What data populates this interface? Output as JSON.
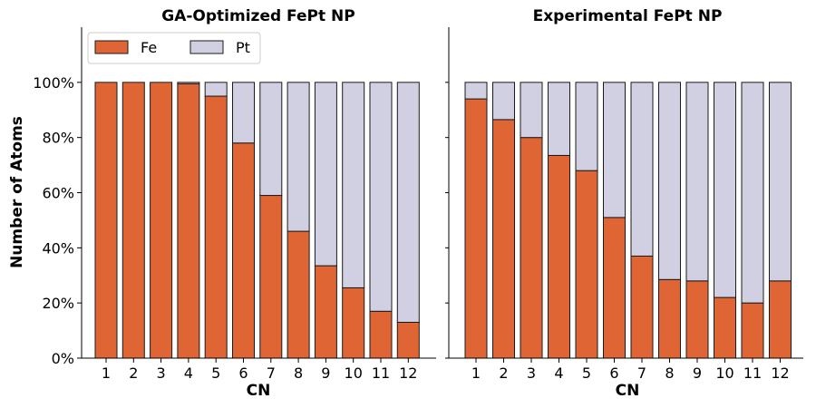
{
  "colors": {
    "Fe": "#e06535",
    "Pt": "#d0d0e2",
    "edge": "#1a1a1a"
  },
  "chart_data": [
    {
      "type": "bar",
      "stacked": true,
      "title": "GA-Optimized FePt NP",
      "xlabel": "CN",
      "ylabel": "Number of Atoms",
      "categories": [
        "1",
        "2",
        "3",
        "4",
        "5",
        "6",
        "7",
        "8",
        "9",
        "10",
        "11",
        "12"
      ],
      "ylim": [
        0,
        120
      ],
      "yticks": [
        "0%",
        "20%",
        "40%",
        "60%",
        "80%",
        "100%"
      ],
      "legend": {
        "placement": "top-left",
        "entries": [
          "Fe",
          "Pt"
        ]
      },
      "series": [
        {
          "name": "Fe",
          "values": [
            100,
            100,
            100,
            99.5,
            95,
            78,
            59,
            46,
            33.5,
            25.5,
            17,
            13
          ]
        },
        {
          "name": "Pt",
          "values": [
            0,
            0,
            0,
            0.5,
            5,
            22,
            41,
            54,
            66.5,
            74.5,
            83,
            87
          ]
        }
      ]
    },
    {
      "type": "bar",
      "stacked": true,
      "title": "Experimental FePt NP",
      "xlabel": "CN",
      "ylabel": "",
      "categories": [
        "1",
        "2",
        "3",
        "4",
        "5",
        "6",
        "7",
        "8",
        "9",
        "10",
        "11",
        "12"
      ],
      "ylim": [
        0,
        120
      ],
      "series": [
        {
          "name": "Fe",
          "values": [
            94,
            86.5,
            80,
            73.5,
            68,
            51,
            37,
            28.5,
            28,
            22,
            20,
            28
          ]
        },
        {
          "name": "Pt",
          "values": [
            6,
            13.5,
            20,
            26.5,
            32,
            49,
            63,
            71.5,
            72,
            78,
            80,
            72
          ]
        }
      ]
    }
  ]
}
